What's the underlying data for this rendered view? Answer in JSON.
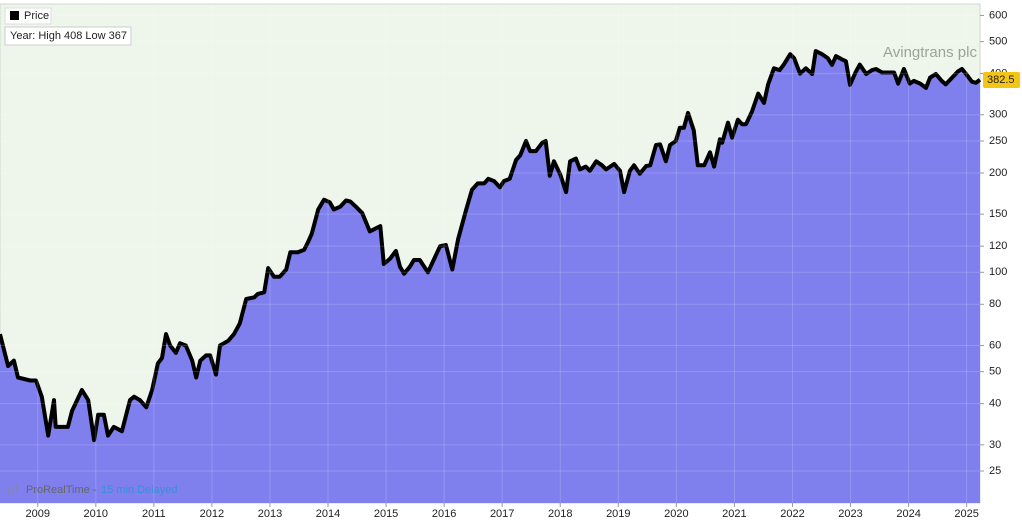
{
  "chart_data": {
    "type": "area",
    "title": "Avingtrans plc",
    "annotations": [
      "Year: High 408 Low 367"
    ],
    "footer": [
      "ProRealTime -",
      "15 min Delayed"
    ],
    "log_scale": true,
    "grid": true,
    "legend": "top-left",
    "background": "#eef6ec",
    "area_color": "#7f7fee",
    "last_price": 382.5,
    "xlim": [
      2008.35,
      2025.23
    ],
    "xticks": [
      2009,
      2010,
      2011,
      2012,
      2013,
      2014,
      2015,
      2016,
      2017,
      2018,
      2019,
      2020,
      2021,
      2022,
      2023,
      2024,
      2025
    ],
    "ylim": [
      20,
      650
    ],
    "yticks": [
      25,
      30,
      40,
      50,
      60,
      80,
      100,
      120,
      150,
      200,
      250,
      300,
      400,
      500,
      600
    ],
    "x": [
      2008.35,
      2008.49,
      2008.59,
      2008.66,
      2008.87,
      2008.97,
      2009.07,
      2009.18,
      2009.28,
      2009.31,
      2009.45,
      2009.52,
      2009.59,
      2009.76,
      2009.87,
      2009.97,
      2010.04,
      2010.14,
      2010.21,
      2010.31,
      2010.45,
      2010.59,
      2010.66,
      2010.76,
      2010.87,
      2010.97,
      2011.07,
      2011.14,
      2011.21,
      2011.28,
      2011.38,
      2011.45,
      2011.55,
      2011.66,
      2011.73,
      2011.8,
      2011.9,
      2011.97,
      2012.07,
      2012.14,
      2012.28,
      2012.38,
      2012.48,
      2012.59,
      2012.73,
      2012.79,
      2012.9,
      2012.97,
      2013.07,
      2013.17,
      2013.28,
      2013.35,
      2013.48,
      2013.59,
      2013.66,
      2013.72,
      2013.83,
      2013.93,
      2014.03,
      2014.1,
      2014.21,
      2014.31,
      2014.38,
      2014.48,
      2014.59,
      2014.72,
      2014.83,
      2014.9,
      2014.96,
      2015.07,
      2015.17,
      2015.24,
      2015.31,
      2015.41,
      2015.48,
      2015.58,
      2015.72,
      2015.83,
      2015.93,
      2016.03,
      2016.14,
      2016.24,
      2016.38,
      2016.48,
      2016.58,
      2016.69,
      2016.76,
      2016.86,
      2016.96,
      2017.03,
      2017.13,
      2017.24,
      2017.31,
      2017.41,
      2017.48,
      2017.58,
      2017.69,
      2017.75,
      2017.82,
      2017.89,
      2018.0,
      2018.1,
      2018.17,
      2018.27,
      2018.34,
      2018.44,
      2018.51,
      2018.62,
      2018.72,
      2018.79,
      2018.93,
      2019.03,
      2019.1,
      2019.2,
      2019.27,
      2019.37,
      2019.48,
      2019.55,
      2019.65,
      2019.72,
      2019.82,
      2019.89,
      2019.99,
      2020.06,
      2020.13,
      2020.2,
      2020.3,
      2020.37,
      2020.48,
      2020.58,
      2020.65,
      2020.75,
      2020.79,
      2020.89,
      2020.96,
      2021.06,
      2021.13,
      2021.2,
      2021.3,
      2021.41,
      2021.51,
      2021.58,
      2021.68,
      2021.78,
      2021.85,
      2021.96,
      2022.03,
      2022.13,
      2022.23,
      2022.34,
      2022.4,
      2022.51,
      2022.61,
      2022.68,
      2022.75,
      2022.85,
      2022.92,
      2022.99,
      2023.09,
      2023.16,
      2023.27,
      2023.37,
      2023.44,
      2023.54,
      2023.64,
      2023.75,
      2023.82,
      2023.92,
      2024.02,
      2024.09,
      2024.2,
      2024.3,
      2024.37,
      2024.47,
      2024.57,
      2024.64,
      2024.75,
      2024.85,
      2024.92,
      2024.99,
      2025.09,
      2025.16,
      2025.23
    ],
    "series": [
      {
        "name": "Price",
        "color": "#000000",
        "values": [
          65,
          52,
          54,
          48,
          47,
          47,
          42,
          32,
          41,
          34,
          34,
          34,
          38,
          44,
          41,
          31,
          37,
          37,
          32,
          34,
          33,
          41,
          42,
          41,
          39,
          44,
          53,
          55,
          65,
          60,
          57,
          61,
          60,
          54,
          48,
          54,
          56,
          56,
          49,
          60,
          62,
          65,
          70,
          83,
          84,
          86,
          87,
          103,
          97,
          97,
          102,
          115,
          115,
          117,
          124,
          131,
          155,
          166,
          163,
          155,
          158,
          165,
          164,
          158,
          151,
          133,
          136,
          138,
          106,
          110,
          116,
          104,
          99,
          104,
          109,
          109,
          100,
          110,
          120,
          121,
          102,
          126,
          155,
          178,
          186,
          186,
          192,
          189,
          181,
          189,
          192,
          219,
          226,
          250,
          233,
          233,
          247,
          250,
          196,
          217,
          198,
          175,
          217,
          221,
          205,
          209,
          203,
          217,
          211,
          205,
          213,
          203,
          175,
          203,
          211,
          199,
          210,
          211,
          243,
          244,
          217,
          243,
          250,
          274,
          274,
          304,
          269,
          211,
          211,
          231,
          209,
          253,
          247,
          284,
          256,
          290,
          281,
          281,
          306,
          348,
          326,
          371,
          415,
          410,
          426,
          458,
          445,
          400,
          415,
          399,
          468,
          458,
          445,
          425,
          452,
          442,
          436,
          370,
          405,
          426,
          399,
          410,
          413,
          403,
          403,
          403,
          373,
          413,
          373,
          380,
          373,
          362,
          389,
          399,
          380,
          371,
          389,
          406,
          413,
          399,
          378,
          375,
          383
        ]
      }
    ]
  }
}
